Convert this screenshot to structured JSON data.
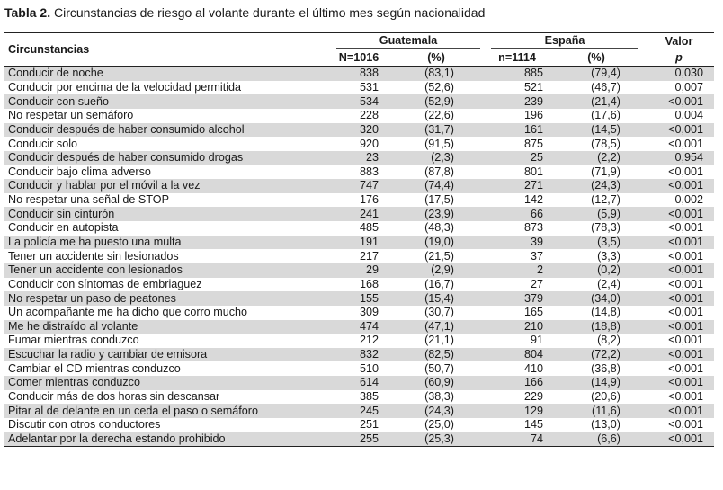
{
  "caption": {
    "label": "Tabla 2.",
    "text": " Circunstancias de riesgo al volante durante el último mes según nacionalidad"
  },
  "header": {
    "circumstances": "Circunstancias",
    "guatemala": "Guatemala",
    "espana": "España",
    "valor": "Valor",
    "p": "p",
    "guatemala_n": "N=1016",
    "guatemala_pct": "(%)",
    "espana_n": "n=1114",
    "espana_pct": "(%)"
  },
  "rows": [
    {
      "name": "Conducir de noche",
      "gt_n": "838",
      "gt_pct": "(83,1)",
      "es_n": "885",
      "es_pct": "(79,4)",
      "p": "0,030"
    },
    {
      "name": "Conducir por encima de la velocidad permitida",
      "gt_n": "531",
      "gt_pct": "(52,6)",
      "es_n": "521",
      "es_pct": "(46,7)",
      "p": "0,007"
    },
    {
      "name": "Conducir con sueño",
      "gt_n": "534",
      "gt_pct": "(52,9)",
      "es_n": "239",
      "es_pct": "(21,4)",
      "p": "<0,001"
    },
    {
      "name": "No respetar un semáforo",
      "gt_n": "228",
      "gt_pct": "(22,6)",
      "es_n": "196",
      "es_pct": "(17,6)",
      "p": "0,004"
    },
    {
      "name": "Conducir después de haber consumido alcohol",
      "gt_n": "320",
      "gt_pct": "(31,7)",
      "es_n": "161",
      "es_pct": "(14,5)",
      "p": "<0,001"
    },
    {
      "name": "Conducir solo",
      "gt_n": "920",
      "gt_pct": "(91,5)",
      "es_n": "875",
      "es_pct": "(78,5)",
      "p": "<0,001"
    },
    {
      "name": "Conducir después de haber consumido drogas",
      "gt_n": "23",
      "gt_pct": "(2,3)",
      "es_n": "25",
      "es_pct": "(2,2)",
      "p": "0,954"
    },
    {
      "name": "Conducir bajo clima adverso",
      "gt_n": "883",
      "gt_pct": "(87,8)",
      "es_n": "801",
      "es_pct": "(71,9)",
      "p": "<0,001"
    },
    {
      "name": "Conducir y hablar por el móvil a la vez",
      "gt_n": "747",
      "gt_pct": "(74,4)",
      "es_n": "271",
      "es_pct": "(24,3)",
      "p": "<0,001"
    },
    {
      "name": "No respetar una señal de STOP",
      "gt_n": "176",
      "gt_pct": "(17,5)",
      "es_n": "142",
      "es_pct": "(12,7)",
      "p": "0,002"
    },
    {
      "name": "Conducir sin cinturón",
      "gt_n": "241",
      "gt_pct": "(23,9)",
      "es_n": "66",
      "es_pct": "(5,9)",
      "p": "<0,001"
    },
    {
      "name": "Conducir en autopista",
      "gt_n": "485",
      "gt_pct": "(48,3)",
      "es_n": "873",
      "es_pct": "(78,3)",
      "p": "<0,001"
    },
    {
      "name": "La policía me ha puesto una multa",
      "gt_n": "191",
      "gt_pct": "(19,0)",
      "es_n": "39",
      "es_pct": "(3,5)",
      "p": "<0,001"
    },
    {
      "name": "Tener un accidente sin lesionados",
      "gt_n": "217",
      "gt_pct": "(21,5)",
      "es_n": "37",
      "es_pct": "(3,3)",
      "p": "<0,001"
    },
    {
      "name": "Tener un accidente con lesionados",
      "gt_n": "29",
      "gt_pct": "(2,9)",
      "es_n": "2",
      "es_pct": "(0,2)",
      "p": "<0,001"
    },
    {
      "name": "Conducir con síntomas de embriaguez",
      "gt_n": "168",
      "gt_pct": "(16,7)",
      "es_n": "27",
      "es_pct": "(2,4)",
      "p": "<0,001"
    },
    {
      "name": "No respetar un paso de peatones",
      "gt_n": "155",
      "gt_pct": "(15,4)",
      "es_n": "379",
      "es_pct": "(34,0)",
      "p": "<0,001"
    },
    {
      "name": "Un acompañante me ha dicho que corro mucho",
      "gt_n": "309",
      "gt_pct": "(30,7)",
      "es_n": "165",
      "es_pct": "(14,8)",
      "p": "<0,001"
    },
    {
      "name": "Me he distraído al volante",
      "gt_n": "474",
      "gt_pct": "(47,1)",
      "es_n": "210",
      "es_pct": "(18,8)",
      "p": "<0,001"
    },
    {
      "name": "Fumar mientras conduzco",
      "gt_n": "212",
      "gt_pct": "(21,1)",
      "es_n": "91",
      "es_pct": "(8,2)",
      "p": "<0,001"
    },
    {
      "name": "Escuchar la radio y cambiar de emisora",
      "gt_n": "832",
      "gt_pct": "(82,5)",
      "es_n": "804",
      "es_pct": "(72,2)",
      "p": "<0,001"
    },
    {
      "name": "Cambiar el CD mientras conduzco",
      "gt_n": "510",
      "gt_pct": "(50,7)",
      "es_n": "410",
      "es_pct": "(36,8)",
      "p": "<0,001"
    },
    {
      "name": "Comer mientras conduzco",
      "gt_n": "614",
      "gt_pct": "(60,9)",
      "es_n": "166",
      "es_pct": "(14,9)",
      "p": "<0,001"
    },
    {
      "name": "Conducir más de dos horas sin descansar",
      "gt_n": "385",
      "gt_pct": "(38,3)",
      "es_n": "229",
      "es_pct": "(20,6)",
      "p": "<0,001"
    },
    {
      "name": "Pitar al de delante en un ceda el paso o semáforo",
      "gt_n": "245",
      "gt_pct": "(24,3)",
      "es_n": "129",
      "es_pct": "(11,6)",
      "p": "<0,001"
    },
    {
      "name": "Discutir con otros conductores",
      "gt_n": "251",
      "gt_pct": "(25,0)",
      "es_n": "145",
      "es_pct": "(13,0)",
      "p": "<0,001"
    },
    {
      "name": "Adelantar por la derecha estando prohibido",
      "gt_n": "255",
      "gt_pct": "(25,3)",
      "es_n": "74",
      "es_pct": "(6,6)",
      "p": "<0,001"
    }
  ]
}
